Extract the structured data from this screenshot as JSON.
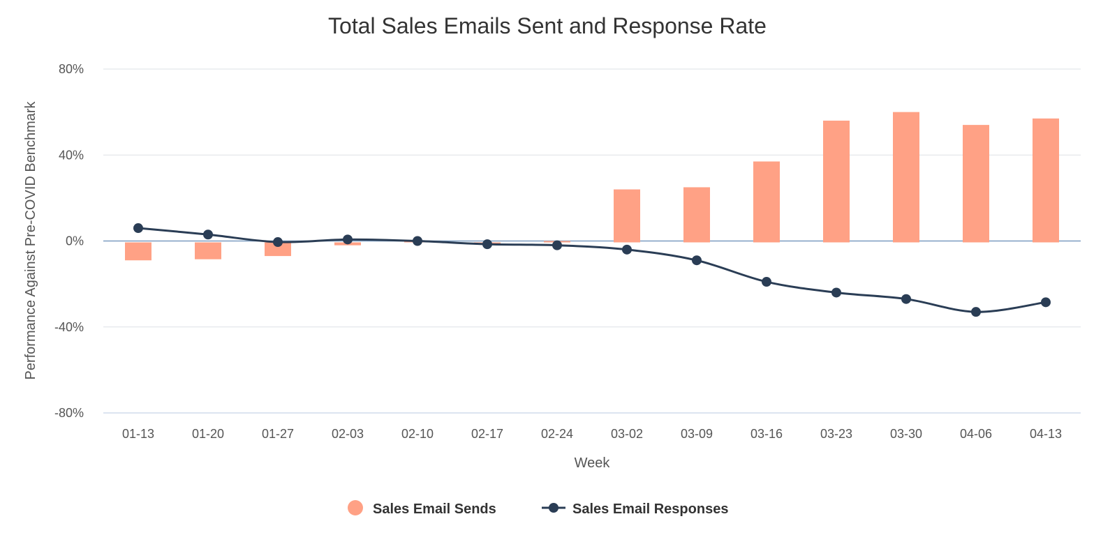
{
  "chart_data": {
    "type": "bar+line",
    "title": "Total Sales Emails Sent and Response Rate",
    "xlabel": "Week",
    "ylabel": "Performance Against Pre-COVID Benchmark",
    "ylim": [
      -80,
      80
    ],
    "yticks": [
      "80%",
      "40%",
      "0%",
      "-40%",
      "-80%"
    ],
    "ytick_values": [
      80,
      40,
      0,
      -40,
      -80
    ],
    "categories": [
      "01-13",
      "01-20",
      "01-27",
      "02-03",
      "02-10",
      "02-17",
      "02-24",
      "03-02",
      "03-09",
      "03-16",
      "03-23",
      "03-30",
      "04-06",
      "04-13"
    ],
    "series": [
      {
        "name": "Sales Email Sends",
        "type": "bar",
        "color": "#FFA185",
        "values": [
          -9,
          -8.5,
          -7,
          -2,
          0,
          -1.5,
          0,
          24,
          25,
          37,
          56,
          60,
          54,
          57
        ]
      },
      {
        "name": "Sales Email Responses",
        "type": "line",
        "color": "#2A3D55",
        "values": [
          6,
          3,
          -0.5,
          0.7,
          0,
          -1.5,
          -2,
          -4,
          -9,
          -19,
          -24,
          -27,
          -33,
          -28.5
        ]
      }
    ],
    "grid": true,
    "legend": "bottom-center"
  }
}
